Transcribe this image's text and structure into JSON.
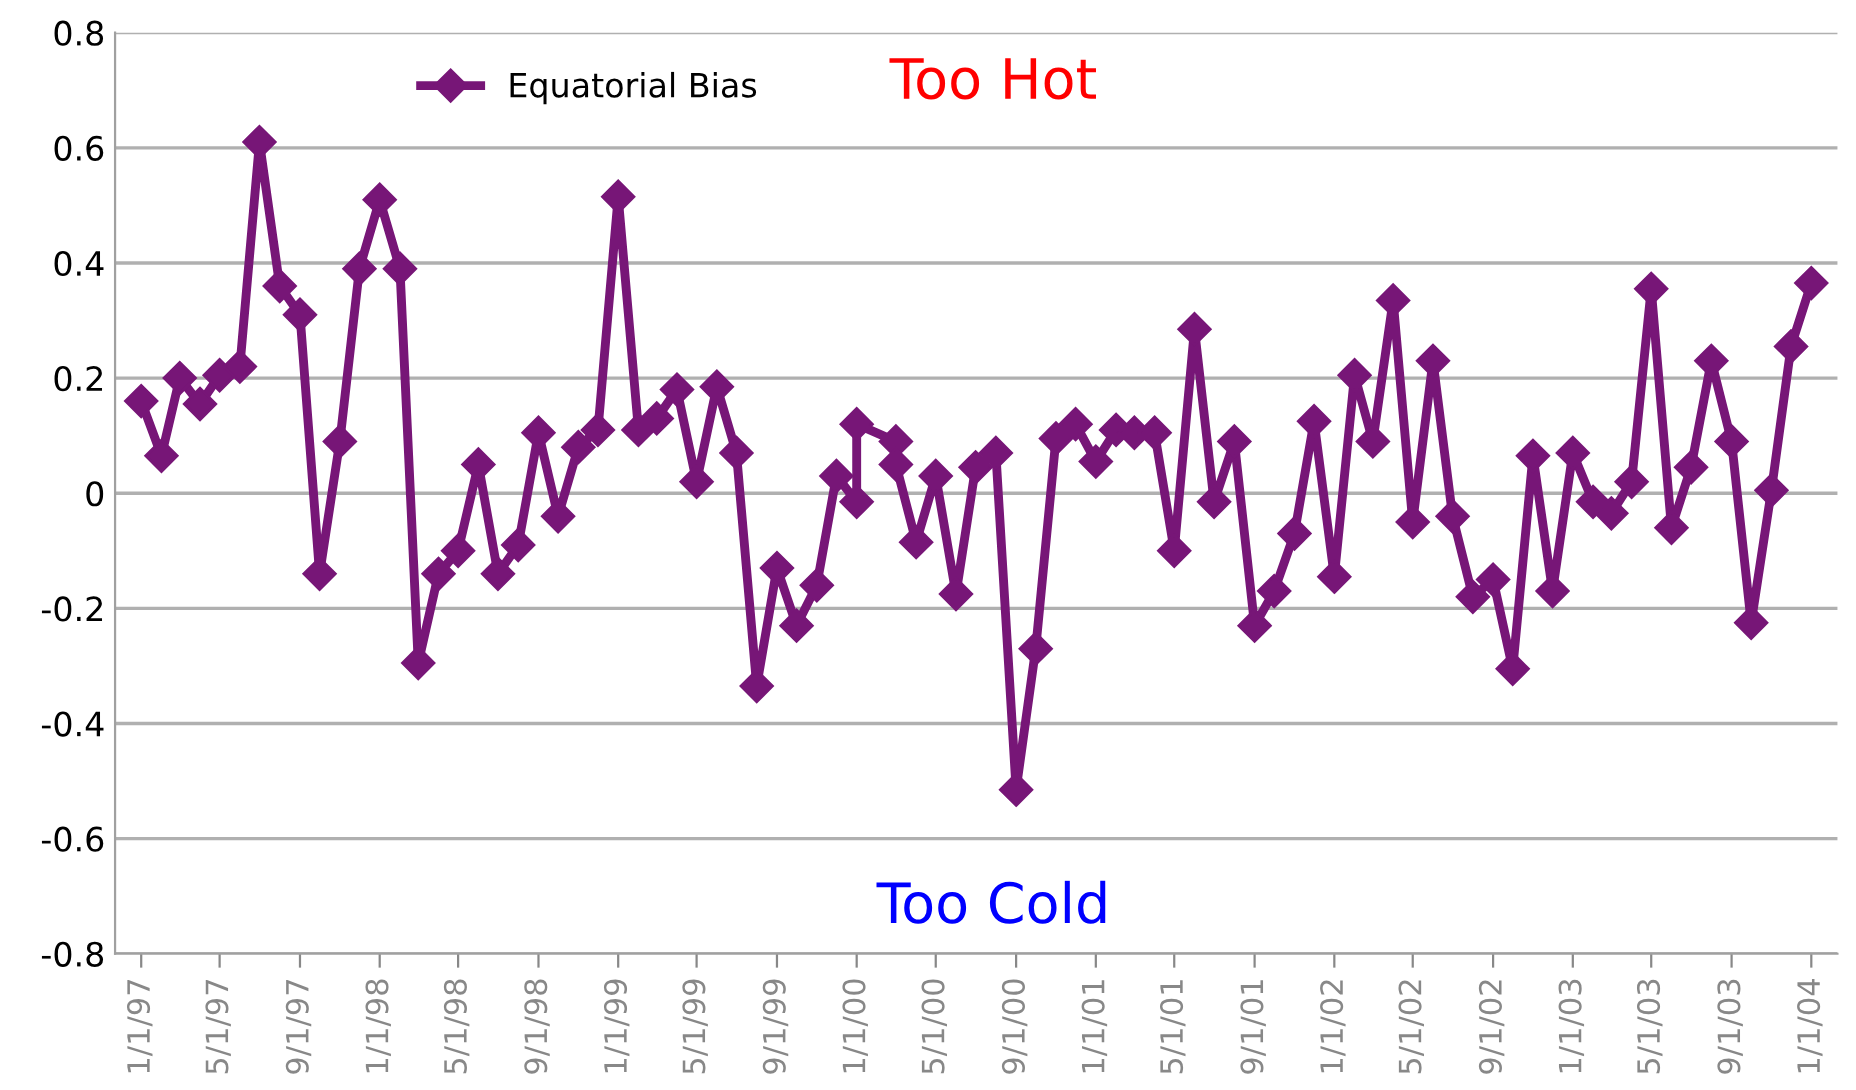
{
  "chart_data": {
    "type": "line",
    "x": [
      "1997-01-01",
      "1997-02-01",
      "1997-03-01",
      "1997-04-01",
      "1997-05-01",
      "1997-06-01",
      "1997-07-01",
      "1997-08-01",
      "1997-09-01",
      "1997-10-01",
      "1997-11-01",
      "1997-12-01",
      "1998-01-01",
      "1998-02-01",
      "1998-03-01",
      "1998-04-01",
      "1998-05-01",
      "1998-06-01",
      "1998-07-01",
      "1998-08-01",
      "1998-09-01",
      "1998-10-01",
      "1998-11-01",
      "1998-12-01",
      "1999-01-01",
      "1999-02-01",
      "1999-03-01",
      "1999-04-01",
      "1999-05-01",
      "1999-06-01",
      "1999-07-01",
      "1999-08-01",
      "1999-09-01",
      "1999-10-01",
      "1999-11-01",
      "1999-12-01",
      "2000-01-01",
      "2000-01-01",
      "2000-03-01",
      "2000-03-01",
      "2000-04-01",
      "2000-05-01",
      "2000-06-01",
      "2000-07-01",
      "2000-08-01",
      "2000-09-01",
      "2000-10-01",
      "2000-11-01",
      "2000-12-01",
      "2001-01-01",
      "2001-02-01",
      "2001-03-01",
      "2001-04-01",
      "2001-05-01",
      "2001-06-01",
      "2001-07-01",
      "2001-08-01",
      "2001-09-01",
      "2001-10-01",
      "2001-11-01",
      "2001-12-01",
      "2002-01-01",
      "2002-02-01",
      "2002-03-01",
      "2002-04-01",
      "2002-05-01",
      "2002-06-01",
      "2002-07-01",
      "2002-08-01",
      "2002-09-01",
      "2002-10-01",
      "2002-11-01",
      "2002-12-01",
      "2003-01-01",
      "2003-02-01",
      "2003-03-01",
      "2003-04-01",
      "2003-05-01",
      "2003-06-01",
      "2003-07-01",
      "2003-08-01",
      "2003-09-01",
      "2003-10-01",
      "2003-11-01",
      "2003-12-01",
      "2004-01-01"
    ],
    "series": [
      {
        "name": "Equatorial Bias",
        "color": "#771677",
        "values": [
          0.16,
          0.065,
          0.2,
          0.155,
          0.205,
          0.22,
          0.61,
          0.36,
          0.31,
          -0.14,
          0.09,
          0.39,
          0.51,
          0.39,
          -0.295,
          -0.14,
          -0.1,
          0.05,
          -0.14,
          -0.09,
          0.105,
          -0.04,
          0.08,
          0.11,
          0.515,
          0.11,
          0.13,
          0.18,
          0.02,
          0.185,
          0.07,
          -0.335,
          -0.13,
          -0.23,
          -0.16,
          0.03,
          -0.015,
          0.12,
          0.09,
          0.05,
          -0.085,
          0.03,
          -0.175,
          0.045,
          0.07,
          -0.515,
          -0.27,
          0.095,
          0.12,
          0.055,
          0.11,
          0.105,
          0.105,
          -0.1,
          0.285,
          -0.015,
          0.09,
          -0.23,
          -0.17,
          -0.07,
          0.125,
          -0.145,
          0.205,
          0.09,
          0.335,
          -0.05,
          0.23,
          -0.04,
          -0.18,
          -0.15,
          -0.305,
          0.065,
          -0.17,
          0.07,
          -0.015,
          -0.035,
          0.02,
          0.355,
          -0.06,
          0.045,
          0.23,
          0.09,
          -0.225,
          0.005,
          0.255,
          0.365
        ]
      }
    ],
    "xlim": [
      "1996-11-22",
      "2004-02-10"
    ],
    "xticks": [
      {
        "value": "1997-01-01",
        "label": "1/1/97"
      },
      {
        "value": "1997-05-01",
        "label": "5/1/97"
      },
      {
        "value": "1997-09-01",
        "label": "9/1/97"
      },
      {
        "value": "1998-01-01",
        "label": "1/1/98"
      },
      {
        "value": "1998-05-01",
        "label": "5/1/98"
      },
      {
        "value": "1998-09-01",
        "label": "9/1/98"
      },
      {
        "value": "1999-01-01",
        "label": "1/1/99"
      },
      {
        "value": "1999-05-01",
        "label": "5/1/99"
      },
      {
        "value": "1999-09-01",
        "label": "9/1/99"
      },
      {
        "value": "2000-01-01",
        "label": "1/1/00"
      },
      {
        "value": "2000-05-01",
        "label": "5/1/00"
      },
      {
        "value": "2000-09-01",
        "label": "9/1/00"
      },
      {
        "value": "2001-01-01",
        "label": "1/1/01"
      },
      {
        "value": "2001-05-01",
        "label": "5/1/01"
      },
      {
        "value": "2001-09-01",
        "label": "9/1/01"
      },
      {
        "value": "2002-01-01",
        "label": "1/1/02"
      },
      {
        "value": "2002-05-01",
        "label": "5/1/02"
      },
      {
        "value": "2002-09-01",
        "label": "9/1/02"
      },
      {
        "value": "2003-01-01",
        "label": "1/1/03"
      },
      {
        "value": "2003-05-01",
        "label": "5/1/03"
      },
      {
        "value": "2003-09-01",
        "label": "9/1/03"
      },
      {
        "value": "2004-01-01",
        "label": "1/1/04"
      }
    ],
    "ylim": [
      -0.8,
      0.8
    ],
    "yticks": [
      -0.8,
      -0.6,
      -0.4,
      -0.2,
      0,
      0.2,
      0.4,
      0.6,
      0.8
    ],
    "annotations": [
      "Too Hot",
      "Too Cold"
    ],
    "grid": "y",
    "legend": "top left",
    "marker": "diamond",
    "line_style": "solid"
  }
}
